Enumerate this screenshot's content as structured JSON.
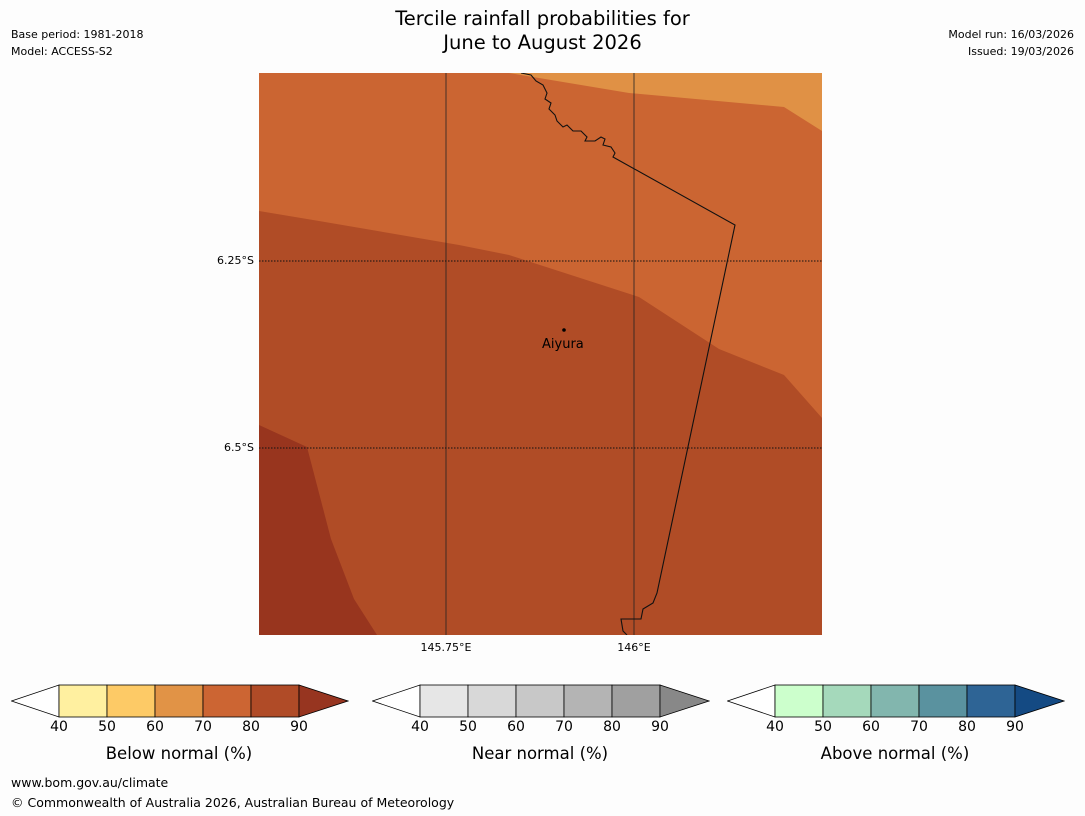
{
  "header": {
    "title_line1": "Tercile rainfall probabilities for",
    "title_line2": "June to August 2026",
    "base_period": "Base period: 1981-2018",
    "model": "Model: ACCESS-S2",
    "model_run": "Model run: 16/03/2026",
    "issued": "Issued: 19/03/2026"
  },
  "map": {
    "lat_labels": [
      "6.25°S",
      "6.5°S"
    ],
    "lon_labels": [
      "145.75°E",
      "146°E"
    ],
    "place_name": "Aiyura",
    "colors": {
      "band_60_70_light": "#e09145",
      "band_70_80": "#cb6532",
      "band_80_90": "#b04c26",
      "band_90_plus": "#98351e",
      "boundary": "#111111"
    }
  },
  "legends": [
    {
      "title": "Below normal (%)",
      "ticks": [
        "40",
        "50",
        "60",
        "70",
        "80",
        "90"
      ],
      "colors": [
        "#fff0a0",
        "#fdca66",
        "#e19346",
        "#cc6533",
        "#b04b27",
        "#973520"
      ]
    },
    {
      "title": "Near normal (%)",
      "ticks": [
        "40",
        "50",
        "60",
        "70",
        "80",
        "90"
      ],
      "colors": [
        "#e6e6e6",
        "#d8d8d8",
        "#c8c8c8",
        "#b4b4b4",
        "#a0a0a0",
        "#888888"
      ]
    },
    {
      "title": "Above normal (%)",
      "ticks": [
        "40",
        "50",
        "60",
        "70",
        "80",
        "90"
      ],
      "colors": [
        "#ccffcc",
        "#a5d9bb",
        "#82b6ae",
        "#5a929f",
        "#2e6495",
        "#144a83"
      ]
    }
  ],
  "footer": {
    "url": "www.bom.gov.au/climate",
    "copyright": "© Commonwealth of Australia 2026, Australian Bureau of Meteorology"
  }
}
